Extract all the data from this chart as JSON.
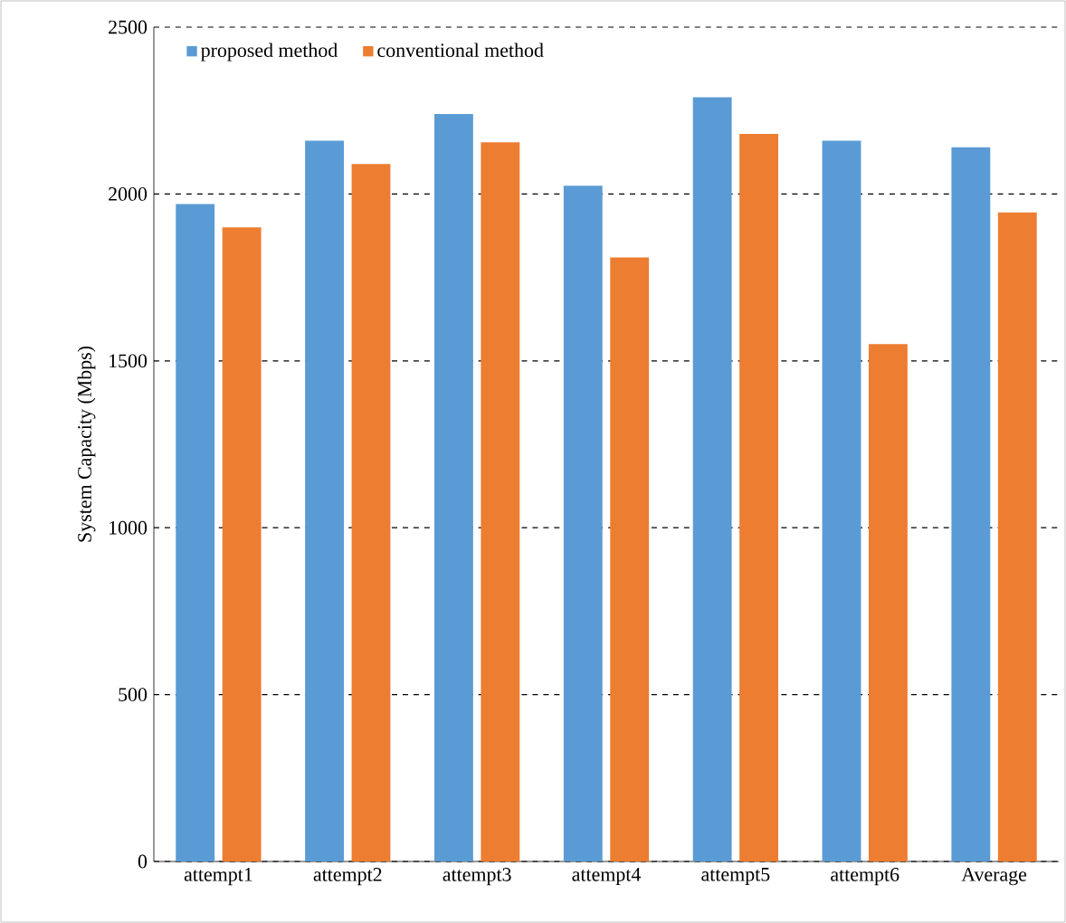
{
  "chart_data": {
    "type": "bar",
    "ylabel": "System Capacity (Mbps)",
    "categories": [
      "attempt1",
      "attempt2",
      "attempt3",
      "attempt4",
      "attempt5",
      "attempt6",
      "Average"
    ],
    "series": [
      {
        "name": "proposed method",
        "color": "#5b9bd5",
        "values": [
          1970,
          2160,
          2240,
          2025,
          2290,
          2160,
          2140
        ]
      },
      {
        "name": "conventional method",
        "color": "#ed7d31",
        "values": [
          1900,
          2090,
          2155,
          1810,
          2180,
          1550,
          1945
        ]
      }
    ],
    "ylim": [
      0,
      2500
    ],
    "yticks": [
      0,
      500,
      1000,
      1500,
      2000,
      2500
    ],
    "grid": "y",
    "legend": "top left"
  }
}
